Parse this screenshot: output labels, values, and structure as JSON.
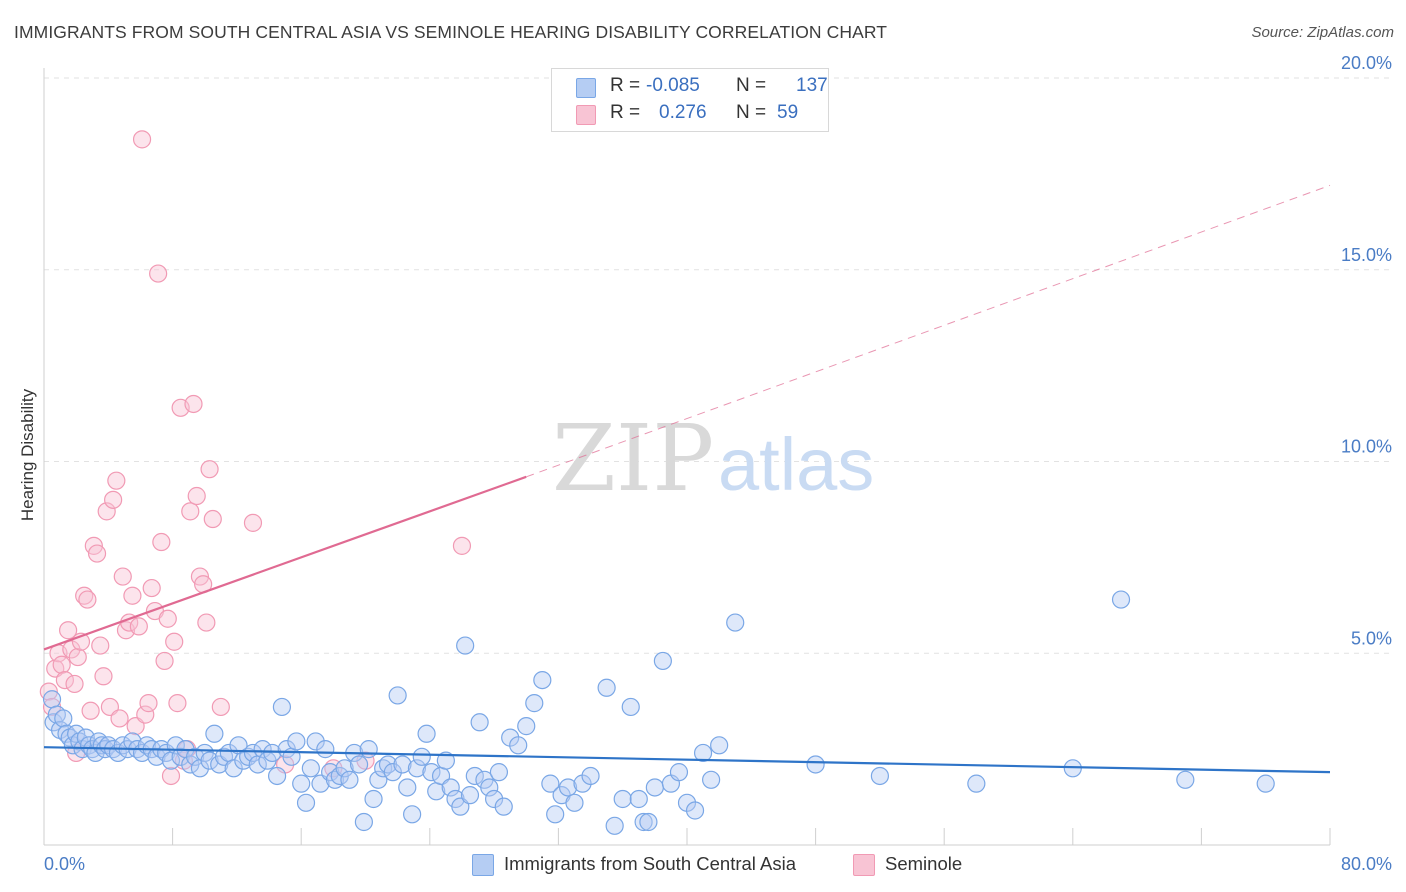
{
  "chart_data": {
    "type": "scatter",
    "title": "IMMIGRANTS FROM SOUTH CENTRAL ASIA VS SEMINOLE HEARING DISABILITY CORRELATION CHART",
    "source": "Source: ZipAtlas.com",
    "ylabel": "Hearing Disability",
    "xlabel": "",
    "xlim": [
      0,
      80
    ],
    "ylim": [
      0,
      20
    ],
    "x_tick_labels": {
      "left": "0.0%",
      "right": "80.0%"
    },
    "y_ticks": [
      {
        "value": 5,
        "label": "5.0%"
      },
      {
        "value": 10,
        "label": "10.0%"
      },
      {
        "value": 15,
        "label": "15.0%"
      },
      {
        "value": 20,
        "label": "20.0%"
      }
    ],
    "watermark": {
      "zip": "ZIP",
      "atlas": "atlas"
    },
    "legend": {
      "rows": [
        {
          "r_label": "R =",
          "r_value": "-0.085",
          "n_label": "N =",
          "n_value": "137"
        },
        {
          "r_label": "R =",
          "r_value": "0.276",
          "n_label": "N =",
          "n_value": "59"
        }
      ]
    },
    "series": [
      {
        "name": "Immigrants from South Central Asia",
        "color": "#7aa7e6",
        "fill": "#b5cdf3",
        "trend_color": "#2e74c8",
        "trend": {
          "x0": 0,
          "y0": 2.55,
          "x1": 80,
          "y1": 1.9
        },
        "points": [
          [
            0.5,
            3.8
          ],
          [
            0.6,
            3.2
          ],
          [
            0.8,
            3.4
          ],
          [
            1.0,
            3.0
          ],
          [
            1.2,
            3.3
          ],
          [
            1.4,
            2.9
          ],
          [
            1.6,
            2.8
          ],
          [
            1.8,
            2.6
          ],
          [
            2.0,
            2.9
          ],
          [
            2.2,
            2.7
          ],
          [
            2.4,
            2.5
          ],
          [
            2.6,
            2.8
          ],
          [
            2.8,
            2.6
          ],
          [
            3.0,
            2.5
          ],
          [
            3.2,
            2.4
          ],
          [
            3.4,
            2.7
          ],
          [
            3.6,
            2.6
          ],
          [
            3.8,
            2.5
          ],
          [
            4.0,
            2.6
          ],
          [
            4.3,
            2.5
          ],
          [
            4.6,
            2.4
          ],
          [
            4.9,
            2.6
          ],
          [
            5.2,
            2.5
          ],
          [
            5.5,
            2.7
          ],
          [
            5.8,
            2.5
          ],
          [
            6.1,
            2.4
          ],
          [
            6.4,
            2.6
          ],
          [
            6.7,
            2.5
          ],
          [
            7.0,
            2.3
          ],
          [
            7.3,
            2.5
          ],
          [
            7.6,
            2.4
          ],
          [
            7.9,
            2.2
          ],
          [
            8.2,
            2.6
          ],
          [
            8.5,
            2.3
          ],
          [
            8.8,
            2.5
          ],
          [
            9.1,
            2.1
          ],
          [
            9.4,
            2.3
          ],
          [
            9.7,
            2.0
          ],
          [
            10.0,
            2.4
          ],
          [
            10.3,
            2.2
          ],
          [
            10.6,
            2.9
          ],
          [
            10.9,
            2.1
          ],
          [
            11.2,
            2.3
          ],
          [
            11.5,
            2.4
          ],
          [
            11.8,
            2.0
          ],
          [
            12.1,
            2.6
          ],
          [
            12.4,
            2.2
          ],
          [
            12.7,
            2.3
          ],
          [
            13.0,
            2.4
          ],
          [
            13.3,
            2.1
          ],
          [
            13.6,
            2.5
          ],
          [
            13.9,
            2.2
          ],
          [
            14.2,
            2.4
          ],
          [
            14.5,
            1.8
          ],
          [
            14.8,
            3.6
          ],
          [
            15.1,
            2.5
          ],
          [
            15.4,
            2.3
          ],
          [
            15.7,
            2.7
          ],
          [
            16.0,
            1.6
          ],
          [
            16.3,
            1.1
          ],
          [
            16.6,
            2.0
          ],
          [
            16.9,
            2.7
          ],
          [
            17.2,
            1.6
          ],
          [
            17.5,
            2.5
          ],
          [
            17.8,
            1.9
          ],
          [
            18.1,
            1.7
          ],
          [
            18.4,
            1.8
          ],
          [
            18.7,
            2.0
          ],
          [
            19.0,
            1.7
          ],
          [
            19.3,
            2.4
          ],
          [
            19.6,
            2.1
          ],
          [
            19.9,
            0.6
          ],
          [
            20.2,
            2.5
          ],
          [
            20.5,
            1.2
          ],
          [
            20.8,
            1.7
          ],
          [
            21.1,
            2.0
          ],
          [
            21.4,
            2.1
          ],
          [
            21.7,
            1.9
          ],
          [
            22.0,
            3.9
          ],
          [
            22.3,
            2.1
          ],
          [
            22.6,
            1.5
          ],
          [
            22.9,
            0.8
          ],
          [
            23.2,
            2.0
          ],
          [
            23.5,
            2.3
          ],
          [
            23.8,
            2.9
          ],
          [
            24.1,
            1.9
          ],
          [
            24.4,
            1.4
          ],
          [
            24.7,
            1.8
          ],
          [
            25.0,
            2.2
          ],
          [
            25.3,
            1.5
          ],
          [
            25.6,
            1.2
          ],
          [
            25.9,
            1.0
          ],
          [
            26.2,
            5.2
          ],
          [
            26.5,
            1.3
          ],
          [
            26.8,
            1.8
          ],
          [
            27.1,
            3.2
          ],
          [
            27.4,
            1.7
          ],
          [
            27.7,
            1.5
          ],
          [
            28.0,
            1.2
          ],
          [
            28.3,
            1.9
          ],
          [
            28.6,
            1.0
          ],
          [
            29.0,
            2.8
          ],
          [
            29.5,
            2.6
          ],
          [
            30.0,
            3.1
          ],
          [
            30.5,
            3.7
          ],
          [
            31.0,
            4.3
          ],
          [
            31.5,
            1.6
          ],
          [
            31.8,
            0.8
          ],
          [
            32.2,
            1.3
          ],
          [
            32.6,
            1.5
          ],
          [
            33.0,
            1.1
          ],
          [
            33.5,
            1.6
          ],
          [
            34.0,
            1.8
          ],
          [
            35.0,
            4.1
          ],
          [
            35.5,
            0.5
          ],
          [
            36.0,
            1.2
          ],
          [
            36.5,
            3.6
          ],
          [
            37.0,
            1.2
          ],
          [
            37.3,
            0.6
          ],
          [
            37.6,
            0.6
          ],
          [
            38.0,
            1.5
          ],
          [
            38.5,
            4.8
          ],
          [
            39.0,
            1.6
          ],
          [
            39.5,
            1.9
          ],
          [
            40.0,
            1.1
          ],
          [
            40.5,
            0.9
          ],
          [
            41.0,
            2.4
          ],
          [
            41.5,
            1.7
          ],
          [
            42.0,
            2.6
          ],
          [
            43.0,
            5.8
          ],
          [
            48.0,
            2.1
          ],
          [
            52.0,
            1.8
          ],
          [
            58.0,
            1.6
          ],
          [
            64.0,
            2.0
          ],
          [
            67.0,
            6.4
          ],
          [
            71.0,
            1.7
          ],
          [
            76.0,
            1.6
          ]
        ]
      },
      {
        "name": "Seminole",
        "color": "#f19ab4",
        "fill": "#f8c4d4",
        "trend_color": "#e06a92",
        "trend": {
          "x0": 0,
          "y0": 5.1,
          "x1": 30,
          "y1": 9.6
        },
        "trend_dashed": {
          "x0": 30,
          "y0": 9.6,
          "x1": 80,
          "y1": 17.2
        },
        "points": [
          [
            0.3,
            4.0
          ],
          [
            0.5,
            3.6
          ],
          [
            0.7,
            4.6
          ],
          [
            0.9,
            5.0
          ],
          [
            1.1,
            4.7
          ],
          [
            1.3,
            4.3
          ],
          [
            1.5,
            5.6
          ],
          [
            1.7,
            5.1
          ],
          [
            1.9,
            4.2
          ],
          [
            2.1,
            4.9
          ],
          [
            2.3,
            5.3
          ],
          [
            2.5,
            6.5
          ],
          [
            2.7,
            6.4
          ],
          [
            2.9,
            3.5
          ],
          [
            3.1,
            7.8
          ],
          [
            3.3,
            7.6
          ],
          [
            3.5,
            5.2
          ],
          [
            3.7,
            4.4
          ],
          [
            3.9,
            8.7
          ],
          [
            4.1,
            3.6
          ],
          [
            4.3,
            9.0
          ],
          [
            4.5,
            9.5
          ],
          [
            4.7,
            3.3
          ],
          [
            4.9,
            7.0
          ],
          [
            5.1,
            5.6
          ],
          [
            5.3,
            5.8
          ],
          [
            5.5,
            6.5
          ],
          [
            5.7,
            3.1
          ],
          [
            5.9,
            5.7
          ],
          [
            6.1,
            18.4
          ],
          [
            6.3,
            3.4
          ],
          [
            6.5,
            3.7
          ],
          [
            6.7,
            6.7
          ],
          [
            6.9,
            6.1
          ],
          [
            7.1,
            14.9
          ],
          [
            7.3,
            7.9
          ],
          [
            7.5,
            4.8
          ],
          [
            7.7,
            5.9
          ],
          [
            7.9,
            1.8
          ],
          [
            8.1,
            5.3
          ],
          [
            8.3,
            3.7
          ],
          [
            8.5,
            11.4
          ],
          [
            8.7,
            2.2
          ],
          [
            8.9,
            2.5
          ],
          [
            9.1,
            8.7
          ],
          [
            9.3,
            11.5
          ],
          [
            9.5,
            9.1
          ],
          [
            9.7,
            7.0
          ],
          [
            9.9,
            6.8
          ],
          [
            10.1,
            5.8
          ],
          [
            10.3,
            9.8
          ],
          [
            10.5,
            8.5
          ],
          [
            11.0,
            3.6
          ],
          [
            13.0,
            8.4
          ],
          [
            15.0,
            2.1
          ],
          [
            18.0,
            2.0
          ],
          [
            20.0,
            2.2
          ],
          [
            26.0,
            7.8
          ],
          [
            2.0,
            2.4
          ]
        ]
      }
    ]
  }
}
